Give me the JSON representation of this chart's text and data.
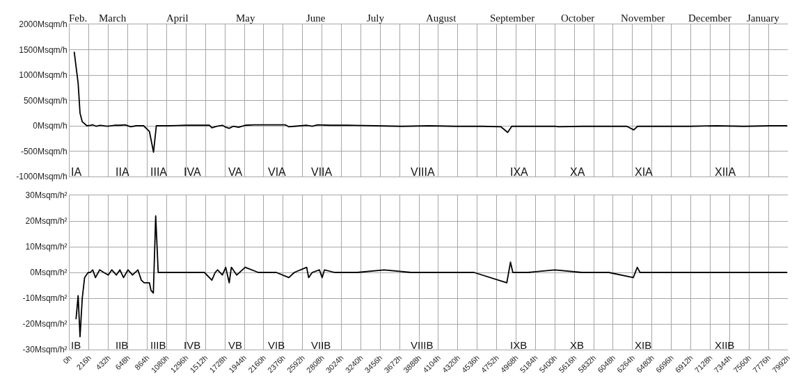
{
  "chart_data": [
    {
      "type": "line",
      "grid": true,
      "tick_labels": "y",
      "line_style": "solid",
      "marker": "none",
      "xlim": [
        0,
        7992
      ],
      "xticks": [
        0,
        216,
        432,
        648,
        864,
        1080,
        1296,
        1512,
        1728,
        1944,
        2160,
        2376,
        2592,
        2808,
        3024,
        3240,
        3456,
        3672,
        3888,
        4104,
        4320,
        4536,
        4752,
        4968,
        5184,
        5400,
        5616,
        5832,
        6048,
        6264,
        6480,
        6696,
        6912,
        7128,
        7344,
        7560,
        7776,
        7992
      ],
      "ylim": [
        -1000,
        2000
      ],
      "yticks": [
        {
          "value": -1000,
          "label": "-1000Msqm/h"
        },
        {
          "value": -500,
          "label": "-500Msqm/h"
        },
        {
          "value": 0,
          "label": "0Msqm/h"
        },
        {
          "value": 500,
          "label": "500Msqm/h"
        },
        {
          "value": 1000,
          "label": "1000Msqm/h"
        },
        {
          "value": 1500,
          "label": "1500Msqm/h"
        },
        {
          "value": 2000,
          "label": "2000Msqm/h"
        }
      ],
      "series": [
        {
          "color": "#000000",
          "x": [
            52,
            95,
            116,
            141,
            193,
            230,
            257,
            296,
            340,
            420,
            500,
            560,
            618,
            680,
            740,
            824,
            888,
            934,
            965,
            1100,
            1300,
            1500,
            1557,
            1583,
            1640,
            1700,
            1740,
            1776,
            1820,
            1880,
            1954,
            2050,
            2200,
            2400,
            2440,
            2500,
            2640,
            2700,
            2760,
            2900,
            3100,
            3400,
            3700,
            4000,
            4300,
            4600,
            4800,
            4875,
            4920,
            5200,
            5400,
            5440,
            5700,
            6000,
            6200,
            6278,
            6320,
            6600,
            6900,
            7200,
            7500,
            7800,
            7980
          ],
          "values": [
            1450,
            840,
            250,
            80,
            0,
            10,
            20,
            -10,
            10,
            -10,
            10,
            10,
            20,
            -20,
            0,
            0,
            -110,
            -520,
            0,
            0,
            10,
            10,
            10,
            -40,
            -10,
            10,
            -30,
            -50,
            -10,
            -30,
            10,
            20,
            20,
            20,
            -20,
            -10,
            10,
            -10,
            20,
            10,
            10,
            0,
            -10,
            0,
            -10,
            -10,
            -20,
            -130,
            -10,
            -10,
            -10,
            -20,
            -10,
            -10,
            -10,
            -80,
            -10,
            -10,
            -10,
            0,
            -10,
            0,
            0
          ]
        }
      ],
      "annotations": [
        "Feb.",
        "March",
        "April",
        "May",
        "June",
        "July",
        "August",
        "September",
        "October",
        "November",
        "December",
        "January",
        "IA",
        "IIA",
        "IIIA",
        "IVA",
        "VA",
        "VIA",
        "VIIA",
        "VIIIA",
        "IXA",
        "XA",
        "XIA",
        "XIIA"
      ]
    },
    {
      "type": "line",
      "grid": true,
      "line_style": "solid",
      "marker": "none",
      "xlim": [
        0,
        7992
      ],
      "xticks": [
        {
          "value": 0,
          "label": "0h"
        },
        {
          "value": 216,
          "label": "216h"
        },
        {
          "value": 432,
          "label": "432h"
        },
        {
          "value": 648,
          "label": "648h"
        },
        {
          "value": 864,
          "label": "864h"
        },
        {
          "value": 1080,
          "label": "1080h"
        },
        {
          "value": 1296,
          "label": "1296h"
        },
        {
          "value": 1512,
          "label": "1512h"
        },
        {
          "value": 1728,
          "label": "1728h"
        },
        {
          "value": 1944,
          "label": "1944h"
        },
        {
          "value": 2160,
          "label": "2160h"
        },
        {
          "value": 2376,
          "label": "2376h"
        },
        {
          "value": 2592,
          "label": "2592h"
        },
        {
          "value": 2808,
          "label": "2808h"
        },
        {
          "value": 3024,
          "label": "3024h"
        },
        {
          "value": 3240,
          "label": "3240h"
        },
        {
          "value": 3456,
          "label": "3456h"
        },
        {
          "value": 3672,
          "label": "3672h"
        },
        {
          "value": 3888,
          "label": "3888h"
        },
        {
          "value": 4104,
          "label": "4104h"
        },
        {
          "value": 4320,
          "label": "4320h"
        },
        {
          "value": 4536,
          "label": "4536h"
        },
        {
          "value": 4752,
          "label": "4752h"
        },
        {
          "value": 4968,
          "label": "4968h"
        },
        {
          "value": 5184,
          "label": "5184h"
        },
        {
          "value": 5400,
          "label": "5400h"
        },
        {
          "value": 5616,
          "label": "5616h"
        },
        {
          "value": 5832,
          "label": "5832h"
        },
        {
          "value": 6048,
          "label": "6048h"
        },
        {
          "value": 6264,
          "label": "6264h"
        },
        {
          "value": 6480,
          "label": "6480h"
        },
        {
          "value": 6696,
          "label": "6696h"
        },
        {
          "value": 6912,
          "label": "6912h"
        },
        {
          "value": 7128,
          "label": "7128h"
        },
        {
          "value": 7344,
          "label": "7344h"
        },
        {
          "value": 7560,
          "label": "7560h"
        },
        {
          "value": 7776,
          "label": "7776h"
        },
        {
          "value": 7992,
          "label": "7992h"
        }
      ],
      "ylim": [
        -30,
        30
      ],
      "yticks": [
        {
          "value": -30,
          "label": "-30Msqm/h²"
        },
        {
          "value": -20,
          "label": "-20Msqm/h²"
        },
        {
          "value": -10,
          "label": "-10Msqm/h²"
        },
        {
          "value": 0,
          "label": "0Msqm/h²"
        },
        {
          "value": 10,
          "label": "10Msqm/h²"
        },
        {
          "value": 20,
          "label": "20Msqm/h²"
        },
        {
          "value": 30,
          "label": "30Msqm/h²"
        }
      ],
      "series": [
        {
          "color": "#000000",
          "x": [
            72,
            95,
            116,
            141,
            167,
            206,
            230,
            257,
            288,
            334,
            380,
            430,
            470,
            520,
            560,
            600,
            650,
            700,
            760,
            798,
            830,
            888,
            906,
            932,
            958,
            986,
            1200,
            1500,
            1583,
            1620,
            1647,
            1700,
            1737,
            1776,
            1800,
            1860,
            1954,
            2100,
            2300,
            2440,
            2500,
            2638,
            2660,
            2700,
            2780,
            2810,
            2836,
            2950,
            3200,
            3500,
            3800,
            4100,
            4500,
            4865,
            4906,
            4932,
            5100,
            5400,
            5700,
            6000,
            6272,
            6317,
            6347,
            6600,
            7000,
            7500,
            7980
          ],
          "values": [
            -18,
            -9,
            -25,
            -10,
            -2,
            0,
            0,
            1,
            -2,
            1,
            0,
            -1,
            1,
            -1,
            1,
            -2,
            1,
            -1,
            1,
            -3,
            -4,
            -4,
            -7,
            -8,
            22,
            0,
            0,
            0,
            -3,
            0,
            1,
            -1,
            2,
            -4,
            2,
            -1,
            2,
            0,
            0,
            -2,
            0,
            2,
            -2,
            0,
            1,
            -2,
            1,
            0,
            0,
            1,
            0,
            0,
            0,
            -4,
            4,
            0,
            0,
            1,
            0,
            0,
            -2,
            2,
            0,
            0,
            0,
            0,
            0
          ]
        }
      ],
      "annotations": [
        "IB",
        "IIB",
        "IIIB",
        "IVB",
        "VB",
        "VIB",
        "VIIB",
        "VIIIB",
        "IXB",
        "XB",
        "XIB",
        "XIIB"
      ]
    }
  ]
}
